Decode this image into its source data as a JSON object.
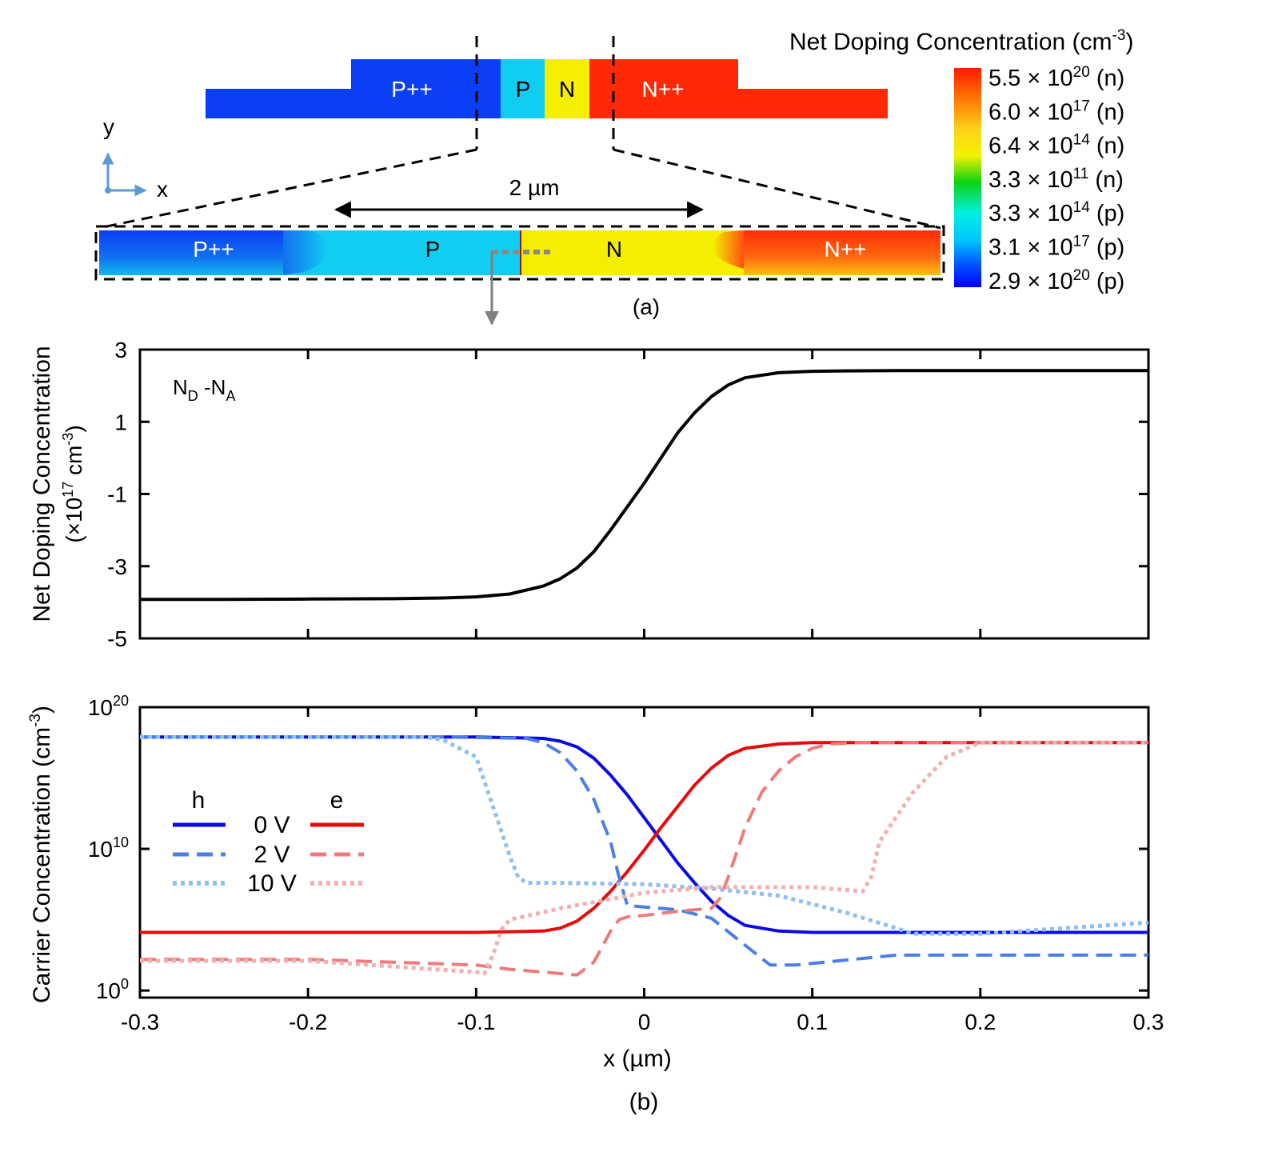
{
  "panel_a": {
    "caption": "(a)",
    "top_device_regions": [
      "P++",
      "P",
      "N",
      "N++"
    ],
    "zoom_regions": [
      "P++",
      "P",
      "N",
      "N++"
    ],
    "scale_label": "2 µm",
    "axis_x": "x",
    "axis_y": "y",
    "colorbar": {
      "title": "Net Doping Concentration (cm",
      "title_sup": "-3",
      "title_end": ")",
      "entries": [
        {
          "mant": "5.5 × 10",
          "exp": "20",
          "type": "(n)"
        },
        {
          "mant": "6.0 × 10",
          "exp": "17",
          "type": "(n)"
        },
        {
          "mant": "6.4 × 10",
          "exp": "14",
          "type": "(n)"
        },
        {
          "mant": "3.3 × 10",
          "exp": "11",
          "type": "(n)"
        },
        {
          "mant": "3.3 × 10",
          "exp": "14",
          "type": "(p)"
        },
        {
          "mant": "3.1 × 10",
          "exp": "17",
          "type": "(p)"
        },
        {
          "mant": "2.9 × 10",
          "exp": "20",
          "type": "(p)"
        }
      ],
      "colors": [
        "#ff1a00",
        "#ff6a00",
        "#ffd21a",
        "#f2f200",
        "#0fd20f",
        "#00f0e0",
        "#00c8ff",
        "#0050ff",
        "#0000ff"
      ]
    },
    "colors": {
      "p_plus": "#0b3ff5",
      "p": "#12cdf2",
      "n": "#f5ee00",
      "n_plus": "#ff2a05"
    }
  },
  "chart_data": [
    {
      "type": "line",
      "title": "",
      "annotation": {
        "main": "N",
        "sub1": "D",
        "mid": " -N",
        "sub2": "A"
      },
      "ylabel_line1": "Net Doping Concentration",
      "ylabel_line2_pre": "(×10",
      "ylabel_line2_sup1": "17",
      "ylabel_line2_mid": " cm",
      "ylabel_line2_sup2": "-3",
      "ylabel_line2_end": ")",
      "xlim": [
        -0.3,
        0.3
      ],
      "ylim": [
        -5,
        3
      ],
      "yticks": [
        3,
        1,
        -1,
        -3,
        -5
      ],
      "ytick_labels": [
        "3",
        "1",
        "-1",
        "-3",
        "-5"
      ],
      "xticks": [
        -0.3,
        -0.2,
        -0.1,
        0,
        0.1,
        0.2,
        0.3
      ],
      "series": [
        {
          "name": "N_D - N_A",
          "color": "#000000",
          "x": [
            -0.3,
            -0.25,
            -0.2,
            -0.15,
            -0.12,
            -0.1,
            -0.08,
            -0.06,
            -0.05,
            -0.04,
            -0.03,
            -0.02,
            -0.01,
            0,
            0.01,
            0.02,
            0.03,
            0.04,
            0.05,
            0.06,
            0.08,
            0.1,
            0.12,
            0.15,
            0.2,
            0.25,
            0.3
          ],
          "y": [
            -3.92,
            -3.92,
            -3.91,
            -3.9,
            -3.88,
            -3.85,
            -3.77,
            -3.55,
            -3.35,
            -3.05,
            -2.6,
            -2.0,
            -1.35,
            -0.7,
            0,
            0.7,
            1.25,
            1.7,
            2.02,
            2.22,
            2.36,
            2.4,
            2.41,
            2.42,
            2.42,
            2.42,
            2.42
          ]
        }
      ]
    },
    {
      "type": "line",
      "ylabel_pre": "Carrier Concentration (cm",
      "ylabel_sup": "-3",
      "ylabel_end": ")",
      "xlabel": "x (µm)",
      "caption": "(b)",
      "yscale": "log",
      "xlim": [
        -0.3,
        0.3
      ],
      "ylim_log10": [
        -0.5,
        20
      ],
      "yticks_log10": [
        0,
        10,
        20
      ],
      "ytick_base": "10",
      "ytick_exps": [
        "0",
        "10",
        "20"
      ],
      "xticks": [
        -0.3,
        -0.2,
        -0.1,
        0,
        0.1,
        0.2,
        0.3
      ],
      "xtick_labels": [
        "-0.3",
        "-0.2",
        "-0.1",
        "0",
        "0.1",
        "0.2",
        "0.3"
      ],
      "legend": {
        "h": "h",
        "e": "e",
        "labels": [
          "0 V",
          "2 V",
          "10 V"
        ],
        "placement": "center-left"
      },
      "series": [
        {
          "name": "h 0 V",
          "color": "#0a0ae6",
          "dash": "solid",
          "x": [
            -0.3,
            -0.1,
            -0.06,
            -0.05,
            -0.04,
            -0.03,
            -0.02,
            -0.01,
            0,
            0.01,
            0.02,
            0.03,
            0.04,
            0.05,
            0.06,
            0.08,
            0.1,
            0.2,
            0.3
          ],
          "y": [
            17.9,
            17.9,
            17.8,
            17.6,
            17.2,
            16.4,
            15.2,
            13.8,
            12.2,
            10.6,
            9.0,
            7.6,
            6.3,
            5.3,
            4.6,
            4.2,
            4.1,
            4.1,
            4.1
          ]
        },
        {
          "name": "e 0 V",
          "color": "#e60a0a",
          "dash": "solid",
          "x": [
            -0.3,
            -0.1,
            -0.06,
            -0.05,
            -0.04,
            -0.03,
            -0.02,
            -0.01,
            0,
            0.01,
            0.02,
            0.03,
            0.04,
            0.05,
            0.06,
            0.08,
            0.1,
            0.2,
            0.3
          ],
          "y": [
            4.1,
            4.1,
            4.2,
            4.4,
            4.9,
            5.8,
            7.0,
            8.4,
            9.9,
            11.5,
            13.0,
            14.5,
            15.7,
            16.6,
            17.1,
            17.4,
            17.5,
            17.5,
            17.5
          ]
        },
        {
          "name": "h 2 V",
          "color": "#4a7fe8",
          "dash": "dashed",
          "x": [
            -0.3,
            -0.12,
            -0.07,
            -0.06,
            -0.05,
            -0.04,
            -0.03,
            -0.02,
            -0.015,
            -0.01,
            0,
            0.02,
            0.04,
            0.06,
            0.075,
            0.09,
            0.15,
            0.3
          ],
          "y": [
            17.9,
            17.9,
            17.8,
            17.5,
            16.8,
            15.5,
            13.5,
            10.5,
            8.0,
            6.0,
            5.9,
            5.7,
            5.1,
            3.2,
            1.8,
            1.8,
            2.5,
            2.5
          ]
        },
        {
          "name": "e 2 V",
          "color": "#f07a7a",
          "dash": "dashed",
          "x": [
            -0.3,
            -0.2,
            -0.1,
            -0.08,
            -0.06,
            -0.04,
            -0.03,
            -0.02,
            -0.015,
            -0.01,
            0,
            0.02,
            0.04,
            0.045,
            0.05,
            0.06,
            0.07,
            0.08,
            0.09,
            0.1,
            0.11,
            0.13,
            0.2,
            0.3
          ],
          "y": [
            2.2,
            2.2,
            1.8,
            1.5,
            1.3,
            1.1,
            2.0,
            4.2,
            5.0,
            5.2,
            5.3,
            5.6,
            5.8,
            6.5,
            8.0,
            11.5,
            14.0,
            15.5,
            16.5,
            17.1,
            17.4,
            17.5,
            17.5,
            17.5
          ]
        },
        {
          "name": "h 10 V",
          "color": "#8ec0f0",
          "dash": "dotted",
          "x": [
            -0.3,
            -0.13,
            -0.12,
            -0.1,
            -0.09,
            -0.08,
            -0.075,
            -0.07,
            -0.05,
            0,
            0.04,
            0.08,
            0.12,
            0.15,
            0.16,
            0.2,
            0.25,
            0.3
          ],
          "y": [
            17.9,
            17.9,
            17.7,
            16.5,
            13.0,
            9.5,
            8.0,
            7.6,
            7.6,
            7.5,
            7.2,
            6.7,
            5.5,
            4.4,
            4.0,
            4.0,
            4.4,
            4.8
          ]
        },
        {
          "name": "e 10 V",
          "color": "#f2b0b0",
          "dash": "dotted",
          "x": [
            -0.3,
            -0.2,
            -0.1,
            -0.095,
            -0.09,
            -0.085,
            -0.08,
            -0.05,
            0,
            0.04,
            0.1,
            0.13,
            0.135,
            0.14,
            0.16,
            0.18,
            0.2,
            0.3
          ],
          "y": [
            2.1,
            2.1,
            1.3,
            1.2,
            2.5,
            4.3,
            5.0,
            5.8,
            6.9,
            7.3,
            7.3,
            7.0,
            8.0,
            10.5,
            14.0,
            16.5,
            17.5,
            17.5
          ]
        }
      ]
    }
  ]
}
